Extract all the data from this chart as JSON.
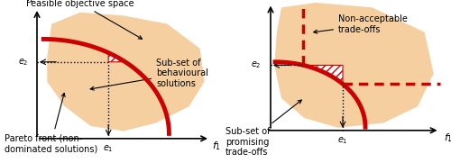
{
  "fig_width": 5.0,
  "fig_height": 1.81,
  "dpi": 100,
  "bg_color": "#ffffff",
  "feasible_fill": "#f5cfa0",
  "pareto_color": "#cc0000",
  "hatch_color": "#cc0000",
  "hatch_fill": "#ffffff",
  "dashed_color": "#cc0000",
  "arrow_color": "#000000",
  "axis_color": "#000000",
  "text_color": "#000000",
  "left_title": "Feasible objective space",
  "left_label_behavioural": "Sub-set of\nbehavioural\nsolutions",
  "left_label_pareto": "Pareto front (non-\ndominated solutions)",
  "right_label_nonacceptable": "Non-acceptable\ntrade-offs",
  "right_label_promising": "Sub-set of\npromising\ntrade-offs"
}
